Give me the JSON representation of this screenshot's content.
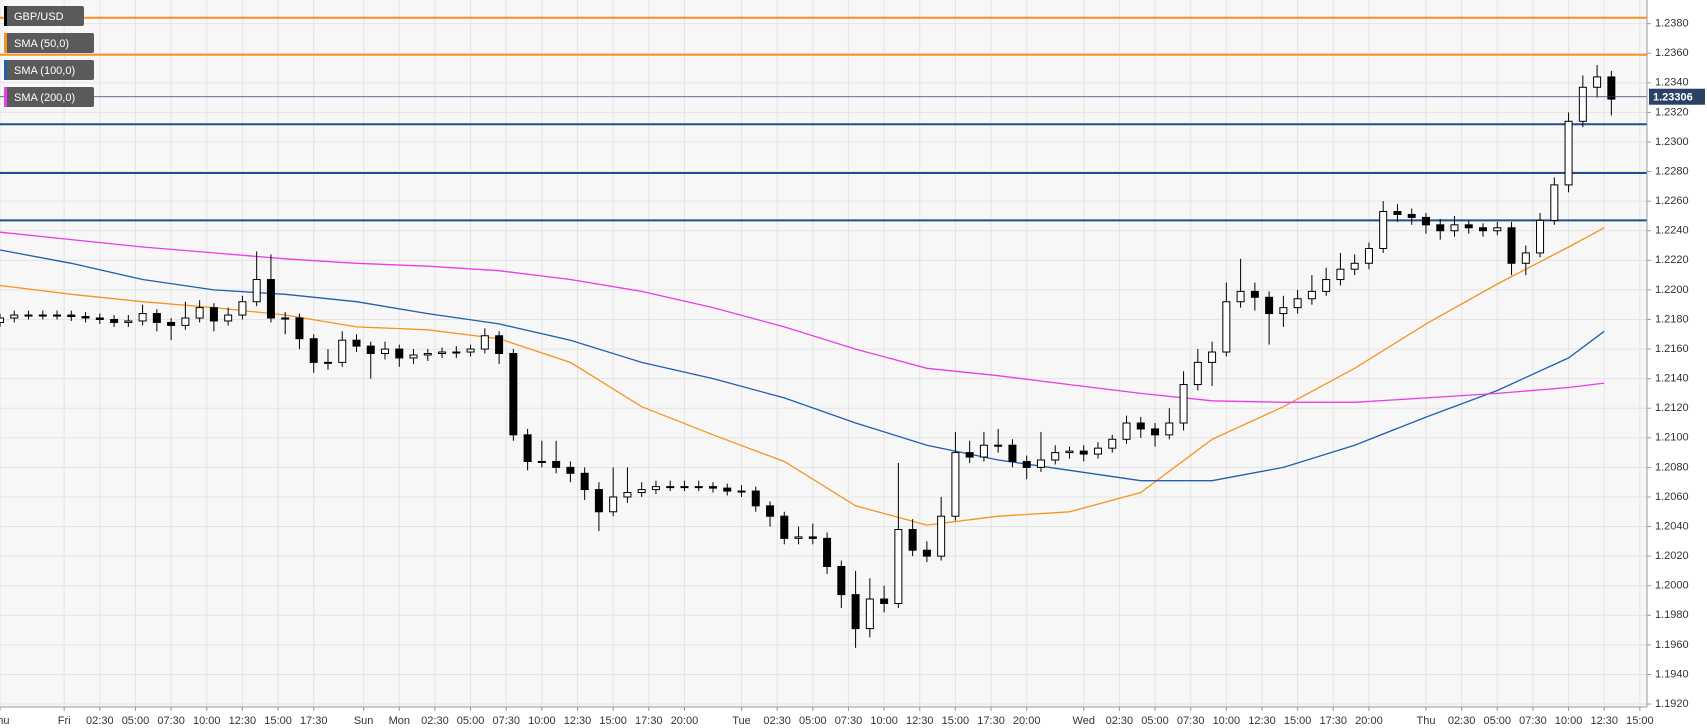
{
  "chart_data": {
    "type": "candlestick",
    "symbol": "GBP/USD",
    "ylim": [
      1.1918,
      1.2396
    ],
    "yticks": [
      {
        "value": 1.192,
        "label": "1.1920"
      },
      {
        "value": 1.194,
        "label": "1.1940"
      },
      {
        "value": 1.196,
        "label": "1.1960"
      },
      {
        "value": 1.198,
        "label": "1.1980"
      },
      {
        "value": 1.2,
        "label": "1.2000"
      },
      {
        "value": 1.202,
        "label": "1.2020"
      },
      {
        "value": 1.204,
        "label": "1.2040"
      },
      {
        "value": 1.206,
        "label": "1.2060"
      },
      {
        "value": 1.208,
        "label": "1.2080"
      },
      {
        "value": 1.21,
        "label": "1.2100"
      },
      {
        "value": 1.212,
        "label": "1.2120"
      },
      {
        "value": 1.214,
        "label": "1.2140"
      },
      {
        "value": 1.216,
        "label": "1.2160"
      },
      {
        "value": 1.218,
        "label": "1.2180"
      },
      {
        "value": 1.22,
        "label": "1.2200"
      },
      {
        "value": 1.222,
        "label": "1.2220"
      },
      {
        "value": 1.224,
        "label": "1.2240"
      },
      {
        "value": 1.226,
        "label": "1.2260"
      },
      {
        "value": 1.228,
        "label": "1.2280"
      },
      {
        "value": 1.23,
        "label": "1.2300"
      },
      {
        "value": 1.232,
        "label": "1.2320"
      },
      {
        "value": 1.234,
        "label": "1.2340"
      },
      {
        "value": 1.236,
        "label": "1.2360"
      },
      {
        "value": 1.238,
        "label": "1.2380"
      }
    ],
    "xlim": [
      0,
      231
    ],
    "xticks": [
      {
        "value": 0,
        "label": "Thu"
      },
      {
        "value": 9,
        "label": "Fri"
      },
      {
        "value": 14,
        "label": "02:30"
      },
      {
        "value": 19,
        "label": "05:00"
      },
      {
        "value": 24,
        "label": "07:30"
      },
      {
        "value": 29,
        "label": "10:00"
      },
      {
        "value": 34,
        "label": "12:30"
      },
      {
        "value": 39,
        "label": "15:00"
      },
      {
        "value": 44,
        "label": "17:30"
      },
      {
        "value": 51,
        "label": "Sun"
      },
      {
        "value": 56,
        "label": "Mon"
      },
      {
        "value": 61,
        "label": "02:30"
      },
      {
        "value": 66,
        "label": "05:00"
      },
      {
        "value": 71,
        "label": "07:30"
      },
      {
        "value": 76,
        "label": "10:00"
      },
      {
        "value": 81,
        "label": "12:30"
      },
      {
        "value": 86,
        "label": "15:00"
      },
      {
        "value": 91,
        "label": "17:30"
      },
      {
        "value": 96,
        "label": "20:00"
      },
      {
        "value": 104,
        "label": "Tue"
      },
      {
        "value": 109,
        "label": "02:30"
      },
      {
        "value": 114,
        "label": "05:00"
      },
      {
        "value": 119,
        "label": "07:30"
      },
      {
        "value": 124,
        "label": "10:00"
      },
      {
        "value": 129,
        "label": "12:30"
      },
      {
        "value": 134,
        "label": "15:00"
      },
      {
        "value": 139,
        "label": "17:30"
      },
      {
        "value": 144,
        "label": "20:00"
      },
      {
        "value": 152,
        "label": "Wed"
      },
      {
        "value": 157,
        "label": "02:30"
      },
      {
        "value": 162,
        "label": "05:00"
      },
      {
        "value": 167,
        "label": "07:30"
      },
      {
        "value": 172,
        "label": "10:00"
      },
      {
        "value": 177,
        "label": "12:30"
      },
      {
        "value": 182,
        "label": "15:00"
      },
      {
        "value": 187,
        "label": "17:30"
      },
      {
        "value": 192,
        "label": "20:00"
      },
      {
        "value": 200,
        "label": "Thu"
      },
      {
        "value": 205,
        "label": "02:30"
      },
      {
        "value": 210,
        "label": "05:00"
      },
      {
        "value": 215,
        "label": "07:30"
      },
      {
        "value": 220,
        "label": "10:00"
      },
      {
        "value": 225,
        "label": "12:30"
      },
      {
        "value": 230,
        "label": "15:00"
      }
    ],
    "grid": true,
    "up_color": "#ffffff",
    "down_color": "#000000",
    "x": [
      0,
      2,
      4,
      6,
      8,
      10,
      12,
      14,
      16,
      18,
      20,
      22,
      24,
      26,
      28,
      30,
      32,
      34,
      36,
      38,
      40,
      42,
      44,
      46,
      48,
      50,
      52,
      54,
      56,
      58,
      60,
      62,
      64,
      66,
      68,
      70,
      72,
      74,
      76,
      78,
      80,
      82,
      84,
      86,
      88,
      90,
      92,
      94,
      96,
      98,
      100,
      102,
      104,
      106,
      108,
      110,
      112,
      114,
      116,
      118,
      120,
      122,
      124,
      126,
      128,
      130,
      132,
      134,
      136,
      138,
      140,
      142,
      144,
      146,
      148,
      150,
      152,
      154,
      156,
      158,
      160,
      162,
      164,
      166,
      168,
      170,
      172,
      174,
      176,
      178,
      180,
      182,
      184,
      186,
      188,
      190,
      192,
      194,
      196,
      198,
      200,
      202,
      204,
      206,
      208,
      210,
      212,
      214,
      216,
      218,
      220,
      222,
      224,
      226
    ],
    "candles": [
      [
        1.2178,
        1.2184,
        1.2175,
        1.2181
      ],
      [
        1.2181,
        1.2186,
        1.2178,
        1.2183
      ],
      [
        1.2183,
        1.2186,
        1.218,
        1.2183
      ],
      [
        1.2183,
        1.2186,
        1.218,
        1.2183
      ],
      [
        1.2183,
        1.2186,
        1.218,
        1.2183
      ],
      [
        1.2183,
        1.2186,
        1.2179,
        1.2182
      ],
      [
        1.2182,
        1.2185,
        1.2178,
        1.2181
      ],
      [
        1.2181,
        1.2184,
        1.2177,
        1.218
      ],
      [
        1.218,
        1.2183,
        1.2175,
        1.2178
      ],
      [
        1.2178,
        1.2183,
        1.2175,
        1.2179
      ],
      [
        1.2179,
        1.219,
        1.2176,
        1.2184
      ],
      [
        1.2184,
        1.2187,
        1.2172,
        1.2178
      ],
      [
        1.2178,
        1.2181,
        1.2166,
        1.2176
      ],
      [
        1.2176,
        1.2192,
        1.2173,
        1.2181
      ],
      [
        1.2181,
        1.2193,
        1.2178,
        1.2188
      ],
      [
        1.2188,
        1.2191,
        1.2172,
        1.2179
      ],
      [
        1.2179,
        1.2188,
        1.2176,
        1.2183
      ],
      [
        1.2183,
        1.2196,
        1.218,
        1.2192
      ],
      [
        1.2192,
        1.2226,
        1.2189,
        1.2207
      ],
      [
        1.2207,
        1.2224,
        1.2178,
        1.2181
      ],
      [
        1.2181,
        1.2185,
        1.217,
        1.2181
      ],
      [
        1.2181,
        1.2184,
        1.216,
        1.2167
      ],
      [
        1.2167,
        1.217,
        1.2144,
        1.2151
      ],
      [
        1.2151,
        1.216,
        1.2146,
        1.2151
      ],
      [
        1.2151,
        1.2172,
        1.2148,
        1.2166
      ],
      [
        1.2166,
        1.217,
        1.2158,
        1.2162
      ],
      [
        1.2162,
        1.2165,
        1.214,
        1.2157
      ],
      [
        1.2157,
        1.2165,
        1.2153,
        1.216
      ],
      [
        1.216,
        1.2163,
        1.2148,
        1.2154
      ],
      [
        1.2154,
        1.216,
        1.215,
        1.2156
      ],
      [
        1.2156,
        1.216,
        1.2152,
        1.2157
      ],
      [
        1.2157,
        1.2161,
        1.2154,
        1.2158
      ],
      [
        1.2158,
        1.2162,
        1.2154,
        1.2158
      ],
      [
        1.2158,
        1.2163,
        1.2155,
        1.216
      ],
      [
        1.216,
        1.2174,
        1.2157,
        1.2169
      ],
      [
        1.2169,
        1.2172,
        1.215,
        1.2157
      ],
      [
        1.2157,
        1.216,
        1.2098,
        1.2102
      ],
      [
        1.2102,
        1.2106,
        1.2078,
        1.2084
      ],
      [
        1.2084,
        1.2098,
        1.208,
        1.2084
      ],
      [
        1.2084,
        1.2098,
        1.2076,
        1.208
      ],
      [
        1.208,
        1.2084,
        1.207,
        1.2076
      ],
      [
        1.2076,
        1.208,
        1.2058,
        1.2065
      ],
      [
        1.2065,
        1.207,
        1.2037,
        1.205
      ],
      [
        1.205,
        1.208,
        1.2047,
        1.206
      ],
      [
        1.206,
        1.208,
        1.2056,
        1.2063
      ],
      [
        1.2063,
        1.207,
        1.206,
        1.2065
      ],
      [
        1.2065,
        1.2071,
        1.2062,
        1.2067
      ],
      [
        1.2067,
        1.2071,
        1.2064,
        1.2067
      ],
      [
        1.2067,
        1.2071,
        1.2064,
        1.2067
      ],
      [
        1.2067,
        1.2071,
        1.2064,
        1.2067
      ],
      [
        1.2067,
        1.207,
        1.2063,
        1.2066
      ],
      [
        1.2066,
        1.2069,
        1.2061,
        1.2064
      ],
      [
        1.2064,
        1.2068,
        1.206,
        1.2064
      ],
      [
        1.2064,
        1.2067,
        1.205,
        1.2054
      ],
      [
        1.2054,
        1.2057,
        1.204,
        1.2047
      ],
      [
        1.2047,
        1.205,
        1.2028,
        1.2032
      ],
      [
        1.2032,
        1.204,
        1.2028,
        1.2033
      ],
      [
        1.2033,
        1.2042,
        1.2028,
        1.2032
      ],
      [
        1.2032,
        1.2036,
        1.2008,
        1.2013
      ],
      [
        1.2013,
        1.2017,
        1.1985,
        1.1994
      ],
      [
        1.1994,
        1.201,
        1.1958,
        1.1971
      ],
      [
        1.1971,
        1.2005,
        1.1965,
        1.1991
      ],
      [
        1.1991,
        1.2,
        1.1982,
        1.1988
      ],
      [
        1.1988,
        1.2083,
        1.1985,
        1.2038
      ],
      [
        1.2038,
        1.2045,
        1.202,
        1.2024
      ],
      [
        1.2024,
        1.203,
        1.2016,
        1.202
      ],
      [
        1.202,
        1.206,
        1.2017,
        1.2047
      ],
      [
        1.2047,
        1.2104,
        1.2044,
        1.209
      ],
      [
        1.209,
        1.2098,
        1.2083,
        1.2087
      ],
      [
        1.2087,
        1.2104,
        1.2084,
        1.2095
      ],
      [
        1.2095,
        1.2106,
        1.209,
        1.2095
      ],
      [
        1.2095,
        1.2099,
        1.208,
        1.2084
      ],
      [
        1.2084,
        1.2088,
        1.2072,
        1.208
      ],
      [
        1.208,
        1.2104,
        1.2077,
        1.2085
      ],
      [
        1.2085,
        1.2095,
        1.2082,
        1.209
      ],
      [
        1.209,
        1.2094,
        1.2086,
        1.2091
      ],
      [
        1.2091,
        1.2095,
        1.2084,
        1.2089
      ],
      [
        1.2089,
        1.2097,
        1.2086,
        1.2093
      ],
      [
        1.2093,
        1.2102,
        1.209,
        1.2099
      ],
      [
        1.2099,
        1.2115,
        1.2096,
        1.211
      ],
      [
        1.211,
        1.2114,
        1.21,
        1.2106
      ],
      [
        1.2106,
        1.211,
        1.2094,
        1.2102
      ],
      [
        1.2102,
        1.212,
        1.2099,
        1.211
      ],
      [
        1.211,
        1.2145,
        1.2105,
        1.2136
      ],
      [
        1.2136,
        1.216,
        1.2132,
        1.2151
      ],
      [
        1.2151,
        1.2165,
        1.2135,
        1.2158
      ],
      [
        1.2158,
        1.2205,
        1.2155,
        1.2192
      ],
      [
        1.2192,
        1.2221,
        1.2188,
        1.2199
      ],
      [
        1.2199,
        1.2205,
        1.2186,
        1.2195
      ],
      [
        1.2195,
        1.2199,
        1.2163,
        1.2184
      ],
      [
        1.2184,
        1.2196,
        1.2175,
        1.2188
      ],
      [
        1.2188,
        1.22,
        1.2184,
        1.2194
      ],
      [
        1.2194,
        1.221,
        1.219,
        1.2199
      ],
      [
        1.2199,
        1.2215,
        1.2196,
        1.2207
      ],
      [
        1.2207,
        1.2225,
        1.2203,
        1.2214
      ],
      [
        1.2214,
        1.2224,
        1.221,
        1.2218
      ],
      [
        1.2218,
        1.2232,
        1.2214,
        1.2228
      ],
      [
        1.2228,
        1.226,
        1.2225,
        1.2253
      ],
      [
        1.2253,
        1.2258,
        1.2246,
        1.2251
      ],
      [
        1.2251,
        1.2255,
        1.2244,
        1.2249
      ],
      [
        1.2249,
        1.2252,
        1.2238,
        1.2244
      ],
      [
        1.2244,
        1.2248,
        1.2234,
        1.224
      ],
      [
        1.224,
        1.225,
        1.2236,
        1.2244
      ],
      [
        1.2244,
        1.2247,
        1.2238,
        1.2242
      ],
      [
        1.2242,
        1.2245,
        1.2236,
        1.224
      ],
      [
        1.224,
        1.2246,
        1.2237,
        1.2242
      ],
      [
        1.2242,
        1.2246,
        1.221,
        1.2218
      ],
      [
        1.2218,
        1.223,
        1.221,
        1.2225
      ],
      [
        1.2225,
        1.2252,
        1.2222,
        1.2247
      ],
      [
        1.2247,
        1.2276,
        1.2244,
        1.2271
      ],
      [
        1.2271,
        1.232,
        1.2266,
        1.2314
      ],
      [
        1.2314,
        1.2345,
        1.231,
        1.2337
      ],
      [
        1.2337,
        1.2352,
        1.233,
        1.2344
      ],
      [
        1.2344,
        1.2348,
        1.2318,
        1.2329
      ]
    ],
    "series": [
      {
        "name": "SMA (50,0)",
        "color": "#f7931e",
        "x": [
          0,
          10,
          20,
          30,
          40,
          50,
          60,
          70,
          80,
          90,
          100,
          110,
          120,
          130,
          140,
          150,
          160,
          170,
          180,
          190,
          200,
          210,
          220,
          225
        ],
        "values": [
          1.2203,
          1.2197,
          1.2192,
          1.2188,
          1.2183,
          1.2175,
          1.2173,
          1.2167,
          1.2151,
          1.2121,
          1.2102,
          1.2084,
          1.2054,
          1.2041,
          1.2047,
          1.205,
          1.2063,
          1.2099,
          1.2121,
          1.2147,
          1.2177,
          1.2204,
          1.2229,
          1.2242
        ]
      },
      {
        "name": "SMA (100,0)",
        "color": "#1f5fae",
        "x": [
          0,
          10,
          20,
          30,
          40,
          50,
          60,
          70,
          80,
          90,
          100,
          110,
          120,
          130,
          140,
          150,
          160,
          170,
          180,
          190,
          200,
          210,
          220,
          225
        ],
        "values": [
          1.2227,
          1.2218,
          1.2207,
          1.22,
          1.2197,
          1.2192,
          1.2184,
          1.2177,
          1.2166,
          1.2151,
          1.214,
          1.2127,
          1.211,
          1.2095,
          1.2085,
          1.2078,
          1.2071,
          1.2071,
          1.208,
          1.2095,
          1.2114,
          1.2132,
          1.2154,
          1.2172
        ]
      },
      {
        "name": "SMA (200,0)",
        "color": "#e83de8",
        "x": [
          0,
          10,
          20,
          30,
          40,
          50,
          60,
          70,
          80,
          90,
          100,
          110,
          120,
          130,
          140,
          150,
          160,
          170,
          180,
          190,
          200,
          210,
          220,
          225
        ],
        "values": [
          1.2239,
          1.2234,
          1.2229,
          1.2225,
          1.2221,
          1.2218,
          1.2216,
          1.2213,
          1.2207,
          1.2199,
          1.2188,
          1.2175,
          1.216,
          1.2147,
          1.2142,
          1.2136,
          1.213,
          1.2125,
          1.2124,
          1.2124,
          1.2127,
          1.213,
          1.2134,
          1.2137
        ]
      }
    ],
    "levels": [
      {
        "value": 1.2384,
        "color": "#f7931e"
      },
      {
        "value": 1.2359,
        "color": "#f7931e"
      },
      {
        "value": 1.2312,
        "color": "#1f4f8f"
      },
      {
        "value": 1.2279,
        "color": "#1f4f8f"
      },
      {
        "value": 1.2247,
        "color": "#1f4f8f"
      }
    ],
    "current_price": 1.23306,
    "current_price_color": "#2b4266"
  }
}
